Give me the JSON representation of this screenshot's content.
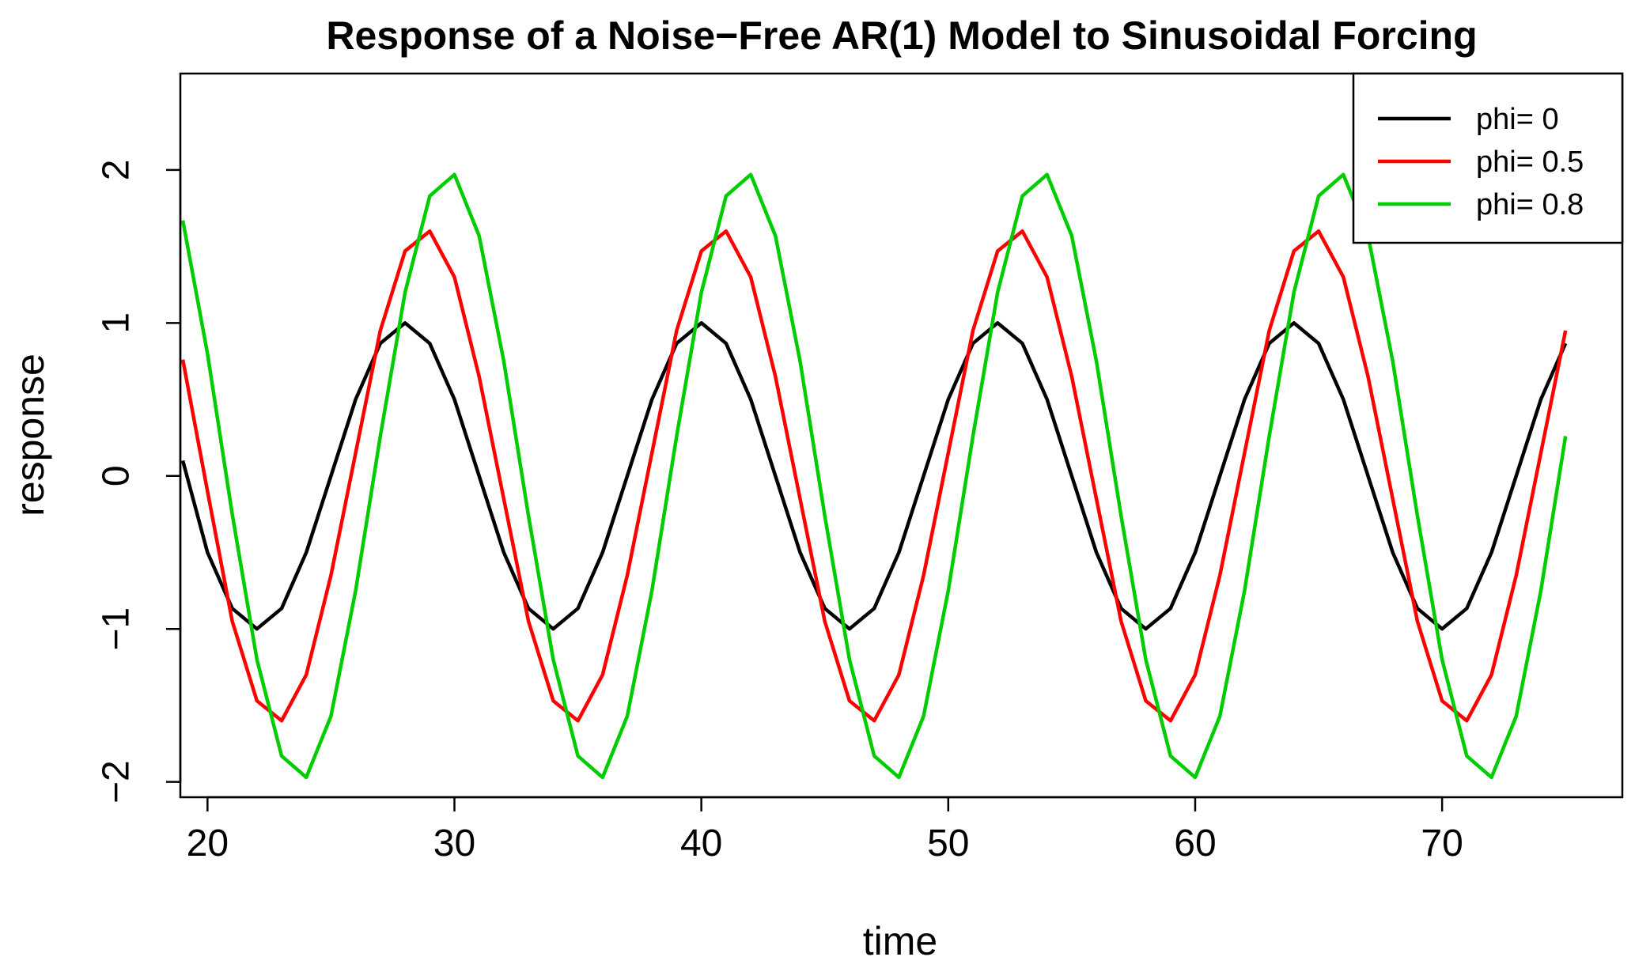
{
  "chart_data": {
    "type": "line",
    "title": "Response of a Noise−Free AR(1) Model to Sinusoidal Forcing",
    "xlabel": "time",
    "ylabel": "response",
    "xlim": [
      18.9,
      77.3
    ],
    "ylim": [
      -2.1,
      2.63
    ],
    "x_ticks": [
      20,
      30,
      40,
      50,
      60,
      70
    ],
    "y_ticks": [
      -2,
      -1,
      0,
      1,
      2
    ],
    "x_tick_labels": [
      "20",
      "30",
      "40",
      "50",
      "60",
      "70"
    ],
    "y_tick_labels": [
      "−2",
      "−1",
      "0",
      "1",
      "2"
    ],
    "legend_position": "top-right",
    "grid": false,
    "series": [
      {
        "name": "phi= 0",
        "color": "#000000",
        "x": [
          19,
          20,
          21,
          22,
          23,
          24,
          25,
          26,
          27,
          28,
          29,
          30,
          31,
          32,
          33,
          34,
          35,
          36,
          37,
          38,
          39,
          40,
          41,
          42,
          43,
          44,
          45,
          46,
          47,
          48,
          49,
          50,
          51,
          52,
          53,
          54,
          55,
          56,
          57,
          58,
          59,
          60,
          61,
          62,
          63,
          64,
          65,
          66,
          67,
          68,
          69,
          70,
          71,
          72,
          73,
          74,
          75
        ],
        "values": [
          0.1,
          -0.5,
          -0.866,
          -1.0,
          -0.866,
          -0.5,
          0.0,
          0.5,
          0.866,
          1.0,
          0.866,
          0.5,
          0.0,
          -0.5,
          -0.866,
          -1.0,
          -0.866,
          -0.5,
          0.0,
          0.5,
          0.866,
          1.0,
          0.866,
          0.5,
          0.0,
          -0.5,
          -0.866,
          -1.0,
          -0.866,
          -0.5,
          0.0,
          0.5,
          0.866,
          1.0,
          0.866,
          0.5,
          0.0,
          -0.5,
          -0.866,
          -1.0,
          -0.866,
          -0.5,
          0.0,
          0.5,
          0.866,
          1.0,
          0.866,
          0.5,
          0.0,
          -0.5,
          -0.866,
          -1.0,
          -0.866,
          -0.5,
          0.0,
          0.5,
          0.866
        ]
      },
      {
        "name": "phi= 0.5",
        "color": "#ff0000",
        "x": [
          19,
          20,
          21,
          22,
          23,
          24,
          25,
          26,
          27,
          28,
          29,
          30,
          31,
          32,
          33,
          34,
          35,
          36,
          37,
          38,
          39,
          40,
          41,
          42,
          43,
          44,
          45,
          46,
          47,
          48,
          49,
          50,
          51,
          52,
          53,
          54,
          55,
          56,
          57,
          58,
          59,
          60,
          61,
          62,
          63,
          64,
          65,
          66,
          67,
          68,
          69,
          70,
          71,
          72,
          73,
          74,
          75
        ],
        "values": [
          0.76,
          -0.1,
          -0.95,
          -1.47,
          -1.6,
          -1.3,
          -0.65,
          0.15,
          0.95,
          1.47,
          1.6,
          1.3,
          0.65,
          -0.15,
          -0.95,
          -1.47,
          -1.6,
          -1.3,
          -0.65,
          0.15,
          0.95,
          1.47,
          1.6,
          1.3,
          0.65,
          -0.15,
          -0.95,
          -1.47,
          -1.6,
          -1.3,
          -0.65,
          0.15,
          0.95,
          1.47,
          1.6,
          1.3,
          0.65,
          -0.15,
          -0.95,
          -1.47,
          -1.6,
          -1.3,
          -0.65,
          0.15,
          0.95,
          1.47,
          1.6,
          1.3,
          0.65,
          -0.15,
          -0.95,
          -1.47,
          -1.6,
          -1.3,
          -0.65,
          0.15,
          0.95
        ]
      },
      {
        "name": "phi= 0.8",
        "color": "#00cc00",
        "x": [
          19,
          20,
          21,
          22,
          23,
          24,
          25,
          26,
          27,
          28,
          29,
          30,
          31,
          32,
          33,
          34,
          35,
          36,
          37,
          38,
          39,
          40,
          41,
          42,
          43,
          44,
          45,
          46,
          47,
          48,
          49,
          50,
          51,
          52,
          53,
          54,
          55,
          56,
          57,
          58,
          59,
          60,
          61,
          62,
          63,
          64,
          65,
          66,
          67,
          68,
          69,
          70,
          71,
          72,
          73,
          74,
          75
        ],
        "values": [
          1.67,
          0.8,
          -0.25,
          -1.2,
          -1.83,
          -1.97,
          -1.57,
          -0.75,
          0.26,
          1.2,
          1.83,
          1.97,
          1.57,
          0.75,
          -0.26,
          -1.2,
          -1.83,
          -1.97,
          -1.57,
          -0.75,
          0.26,
          1.2,
          1.83,
          1.97,
          1.57,
          0.75,
          -0.26,
          -1.2,
          -1.83,
          -1.97,
          -1.57,
          -0.75,
          0.26,
          1.2,
          1.83,
          1.97,
          1.57,
          0.75,
          -0.26,
          -1.2,
          -1.83,
          -1.97,
          -1.57,
          -0.75,
          0.26,
          1.2,
          1.83,
          1.97,
          1.57,
          0.75,
          -0.26,
          -1.2,
          -1.83,
          -1.97,
          -1.57,
          -0.75,
          0.26
        ]
      }
    ]
  }
}
